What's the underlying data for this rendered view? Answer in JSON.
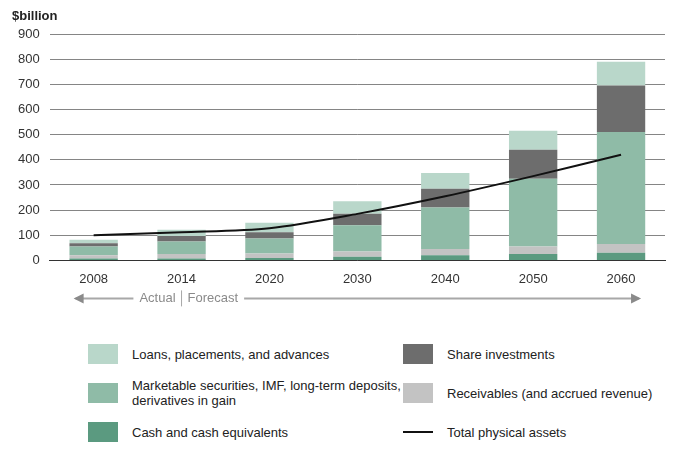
{
  "chart_data": {
    "type": "bar",
    "ylabel": "$billion",
    "categories": [
      "2008",
      "2014",
      "2020",
      "2030",
      "2040",
      "2050",
      "2060"
    ],
    "ylim": [
      0,
      900
    ],
    "yticks": [
      0,
      100,
      200,
      300,
      400,
      500,
      600,
      700,
      800,
      900
    ],
    "grid": true,
    "stacked": true,
    "legend": "bottom",
    "annotations": [
      "Actual",
      "Forecast"
    ],
    "series": [
      {
        "name": "Loans, placements, and advances",
        "color": "#b9d7ca",
        "values": [
          14,
          25,
          38,
          50,
          62,
          75,
          95
        ]
      },
      {
        "name": "Share investments",
        "color": "#6d6d6d",
        "values": [
          13,
          22,
          25,
          45,
          75,
          115,
          185
        ]
      },
      {
        "name": "Marketable securities, IMF, long-term deposits, derivatives in gain",
        "color": "#8fbba7",
        "values": [
          35,
          50,
          60,
          105,
          165,
          270,
          445
        ]
      },
      {
        "name": "Receivables (and accrued revenue)",
        "color": "#c3c3c3",
        "values": [
          12,
          17,
          17,
          20,
          25,
          30,
          35
        ]
      },
      {
        "name": "Cash and cash equivalents",
        "color": "#5b9a80",
        "values": [
          8,
          8,
          10,
          15,
          20,
          25,
          30
        ]
      },
      {
        "name": "Total physical assets",
        "type": "line",
        "color": "#111111",
        "marker": "none",
        "line_style": "solid",
        "values": [
          100,
          112,
          128,
          185,
          255,
          335,
          420
        ]
      }
    ]
  }
}
